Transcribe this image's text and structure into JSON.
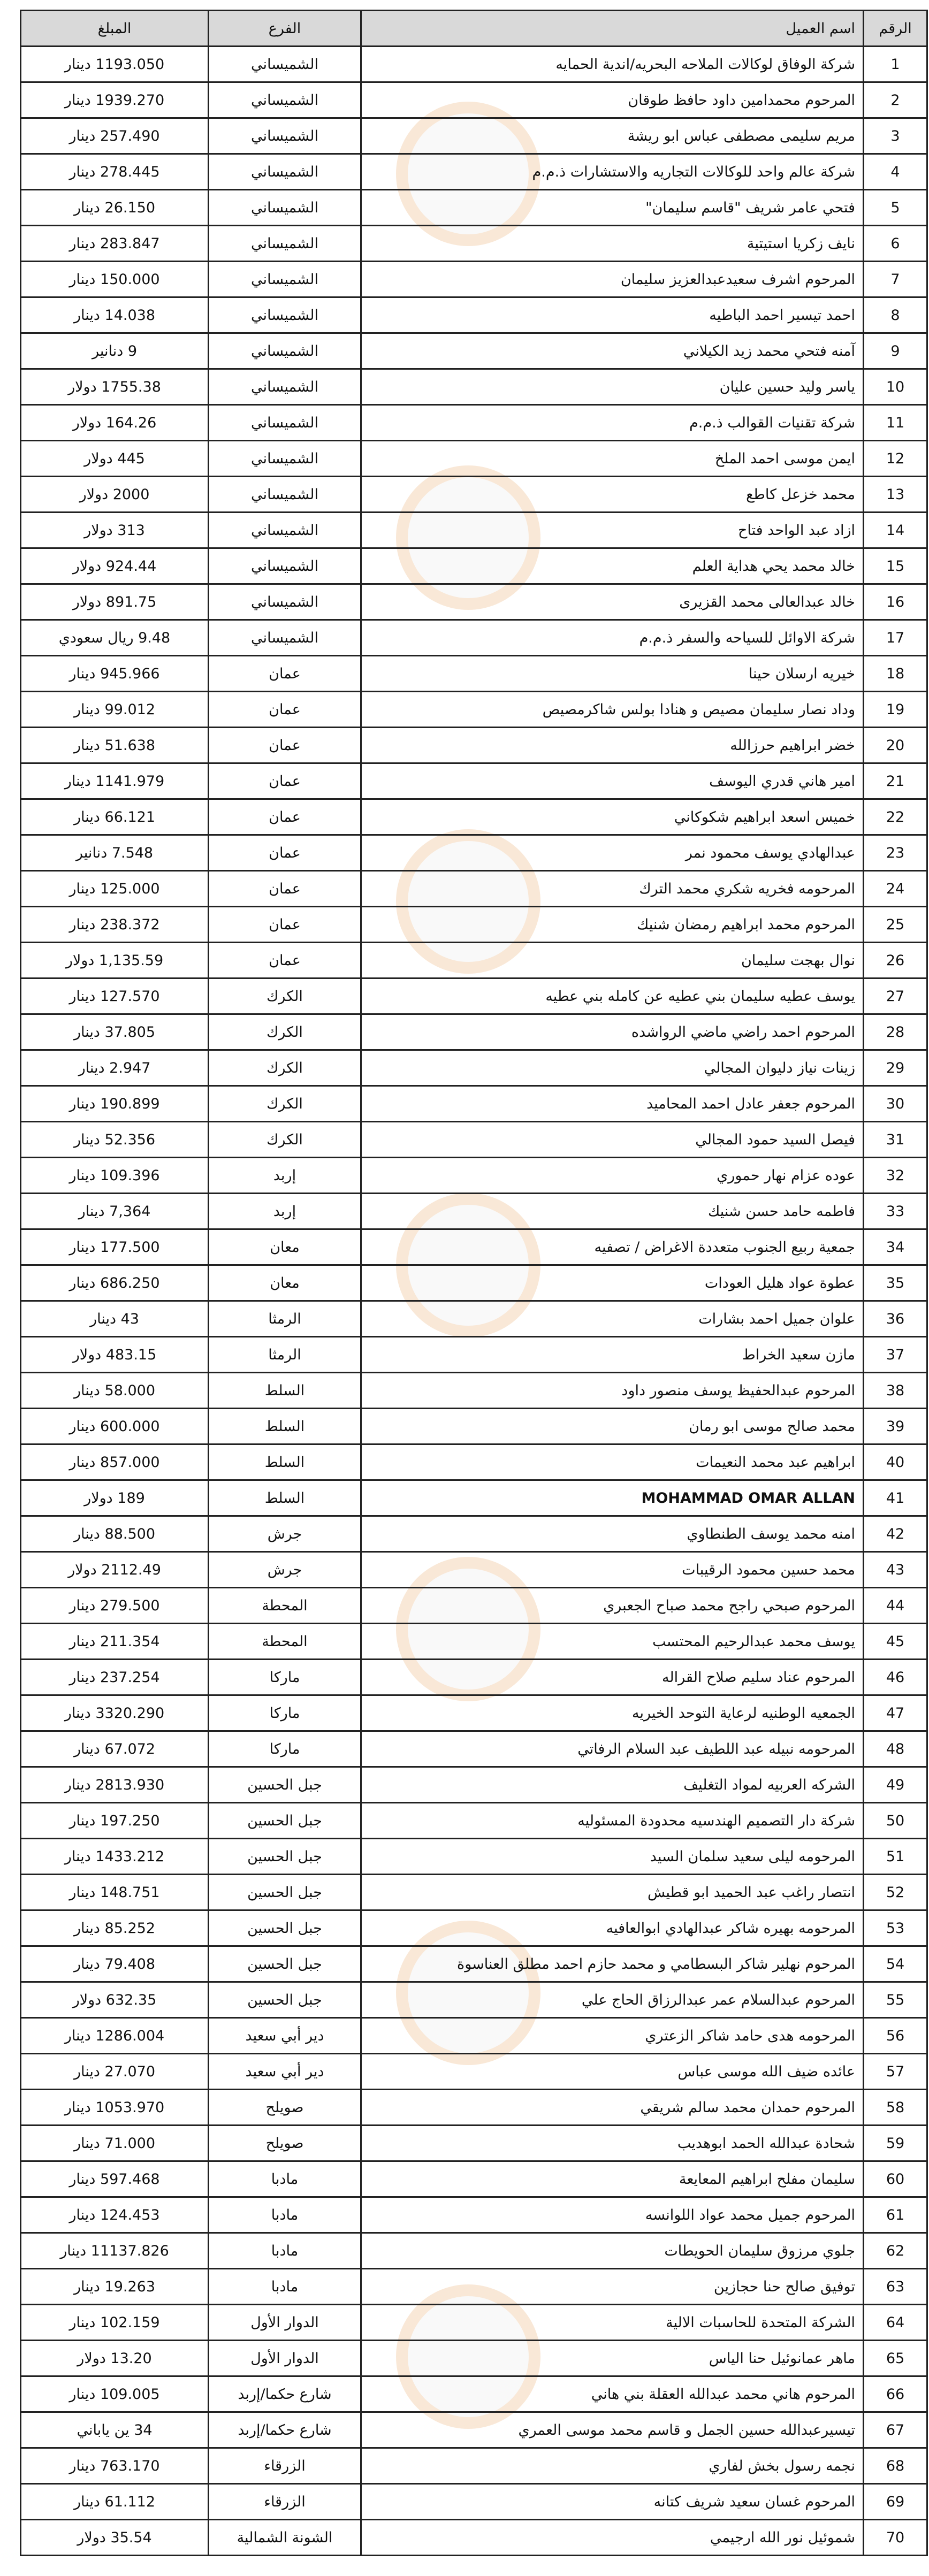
{
  "header": {
    "num": "الرقم",
    "name": "اسم العميل",
    "branch": "الفرع",
    "amount": "المبلغ"
  },
  "watermark_text": "مدار الساعة الإخبارية",
  "watermark_colors": {
    "ring": "#f5aa5a",
    "text": "#dcdcdc"
  },
  "header_bg": "#d9d9d9",
  "rows": [
    {
      "num": "1",
      "name": "شركة الوفاق لوكالات الملاحه البحريه/اندية الحمايه",
      "branch": "الشميساني",
      "amount": "1193.050 دينار"
    },
    {
      "num": "2",
      "name": "المرحوم محمدامين داود حافظ طوقان",
      "branch": "الشميساني",
      "amount": "1939.270 دينار"
    },
    {
      "num": "3",
      "name": "مريم سليمى مصطفى عباس ابو ريشة",
      "branch": "الشميساني",
      "amount": "257.490 دينار"
    },
    {
      "num": "4",
      "name": "شركة عالم واحد للوكالات التجاريه والاستشارات ذ.م.م",
      "branch": "الشميساني",
      "amount": "278.445 دينار"
    },
    {
      "num": "5",
      "name": "فتحي عامر شريف \"قاسم سليمان\"",
      "branch": "الشميساني",
      "amount": "26.150 دينار"
    },
    {
      "num": "6",
      "name": "نايف زكريا استيتية",
      "branch": "الشميساني",
      "amount": "283.847 دينار"
    },
    {
      "num": "7",
      "name": "المرحوم اشرف سعيدعبدالعزيز سليمان",
      "branch": "الشميساني",
      "amount": "150.000 دينار"
    },
    {
      "num": "8",
      "name": "احمد تيسير احمد الباطيه",
      "branch": "الشميساني",
      "amount": "14.038 دينار"
    },
    {
      "num": "9",
      "name": "آمنه فتحي محمد زيد الكيلاني",
      "branch": "الشميساني",
      "amount": "9 دنانير"
    },
    {
      "num": "10",
      "name": "ياسر وليد حسين عليان",
      "branch": "الشميساني",
      "amount": "1755.38 دولار"
    },
    {
      "num": "11",
      "name": "شركة تقنيات القوالب ذ.م.م",
      "branch": "الشميساني",
      "amount": "164.26 دولار"
    },
    {
      "num": "12",
      "name": "ايمن موسى احمد الملخ",
      "branch": "الشميساني",
      "amount": "445 دولار"
    },
    {
      "num": "13",
      "name": "محمد خزعل كاطع",
      "branch": "الشميساني",
      "amount": "2000 دولار"
    },
    {
      "num": "14",
      "name": "ازاد عبد الواحد فتاح",
      "branch": "الشميساني",
      "amount": "313 دولار"
    },
    {
      "num": "15",
      "name": "خالد محمد يحي هداية العلم",
      "branch": "الشميساني",
      "amount": "924.44 دولار"
    },
    {
      "num": "16",
      "name": "خالد عبدالعالى محمد القزيرى",
      "branch": "الشميساني",
      "amount": "891.75 دولار"
    },
    {
      "num": "17",
      "name": "شركة الاوائل للسياحه والسفر ذ.م.م",
      "branch": "الشميساني",
      "amount": "9.48 ريال سعودي"
    },
    {
      "num": "18",
      "name": "خيريه ارسلان حينا",
      "branch": "عمان",
      "amount": "945.966 دينار"
    },
    {
      "num": "19",
      "name": "وداد نصار سليمان مصيص و هنادا بولس شاكرمصيص",
      "branch": "عمان",
      "amount": "99.012 دينار"
    },
    {
      "num": "20",
      "name": "خضر ابراهيم حرزالله",
      "branch": "عمان",
      "amount": "51.638 دينار"
    },
    {
      "num": "21",
      "name": "امير هاني قدري اليوسف",
      "branch": "عمان",
      "amount": "1141.979 دينار"
    },
    {
      "num": "22",
      "name": "خميس اسعد ابراهيم شكوكاني",
      "branch": "عمان",
      "amount": "66.121 دينار"
    },
    {
      "num": "23",
      "name": "عبدالهادي يوسف محمود نمر",
      "branch": "عمان",
      "amount": "7.548 دنانير"
    },
    {
      "num": "24",
      "name": "المرحومه فخريه شكري محمد الترك",
      "branch": "عمان",
      "amount": "125.000 دينار"
    },
    {
      "num": "25",
      "name": "المرحوم محمد ابراهيم رمضان شنيك",
      "branch": "عمان",
      "amount": "238.372 دينار"
    },
    {
      "num": "26",
      "name": "نوال بهجت سليمان",
      "branch": "عمان",
      "amount": "1,135.59 دولار"
    },
    {
      "num": "27",
      "name": "يوسف عطيه سليمان بني عطيه عن كامله بني عطيه",
      "branch": "الكرك",
      "amount": "127.570 دينار"
    },
    {
      "num": "28",
      "name": "المرحوم احمد راضي ماضي الرواشده",
      "branch": "الكرك",
      "amount": "37.805 دينار"
    },
    {
      "num": "29",
      "name": "زينات نياز دليوان المجالي",
      "branch": "الكرك",
      "amount": "2.947 دينار"
    },
    {
      "num": "30",
      "name": "المرحوم جعفر عادل احمد المحاميد",
      "branch": "الكرك",
      "amount": "190.899 دينار"
    },
    {
      "num": "31",
      "name": "فيصل السيد حمود المجالي",
      "branch": "الكرك",
      "amount": "52.356 دينار"
    },
    {
      "num": "32",
      "name": "عوده عزام نهار حموري",
      "branch": "إربد",
      "amount": "109.396 دينار"
    },
    {
      "num": "33",
      "name": "فاطمه حامد حسن شنيك",
      "branch": "إربد",
      "amount": "7,364 دينار"
    },
    {
      "num": "34",
      "name": "جمعية ربيع الجنوب متعددة الاغراض / تصفيه",
      "branch": "معان",
      "amount": "177.500 دينار"
    },
    {
      "num": "35",
      "name": "عطوة عواد هليل العودات",
      "branch": "معان",
      "amount": "686.250 دينار"
    },
    {
      "num": "36",
      "name": "علوان جميل احمد بشارات",
      "branch": "الرمثا",
      "amount": "43 دينار"
    },
    {
      "num": "37",
      "name": "مازن سعيد الخراط",
      "branch": "الرمثا",
      "amount": "483.15 دولار"
    },
    {
      "num": "38",
      "name": "المرحوم عبدالحفيظ يوسف منصور داود",
      "branch": "السلط",
      "amount": "58.000 دينار"
    },
    {
      "num": "39",
      "name": "محمد صالح موسى ابو رمان",
      "branch": "السلط",
      "amount": "600.000 دينار"
    },
    {
      "num": "40",
      "name": "ابراهيم عبد محمد النعيمات",
      "branch": "السلط",
      "amount": "857.000 دينار"
    },
    {
      "num": "41",
      "name": "MOHAMMAD OMAR ALLAN",
      "branch": "السلط",
      "amount": "189 دولار"
    },
    {
      "num": "42",
      "name": "امنه محمد يوسف الطنطاوي",
      "branch": "جرش",
      "amount": "88.500 دينار"
    },
    {
      "num": "43",
      "name": "محمد حسين محمود الرقيبات",
      "branch": "جرش",
      "amount": "2112.49 دولار"
    },
    {
      "num": "44",
      "name": "المرحوم صبحي راجح محمد صباح الجعبري",
      "branch": "المحطة",
      "amount": "279.500 دينار"
    },
    {
      "num": "45",
      "name": "يوسف محمد عبدالرحيم المحتسب",
      "branch": "المحطة",
      "amount": "211.354 دينار"
    },
    {
      "num": "46",
      "name": "المرحوم عناد سليم صلاح القراله",
      "branch": "ماركا",
      "amount": "237.254 دينار"
    },
    {
      "num": "47",
      "name": "الجمعيه الوطنيه لرعاية التوحد الخيريه",
      "branch": "ماركا",
      "amount": "3320.290 دينار"
    },
    {
      "num": "48",
      "name": "المرحومه نبيله عبد اللطيف عبد السلام الرفاتي",
      "branch": "ماركا",
      "amount": "67.072 دينار"
    },
    {
      "num": "49",
      "name": "الشركه العربيه لمواد التغليف",
      "branch": "جبل الحسين",
      "amount": "2813.930 دينار"
    },
    {
      "num": "50",
      "name": "شركة دار التصميم الهندسيه محدودة المسئوليه",
      "branch": "جبل الحسين",
      "amount": "197.250 دينار"
    },
    {
      "num": "51",
      "name": "المرحومه ليلى سعيد سلمان السيد",
      "branch": "جبل الحسين",
      "amount": "1433.212 دينار"
    },
    {
      "num": "52",
      "name": "انتصار راغب عبد الحميد ابو قطيش",
      "branch": "جبل الحسين",
      "amount": "148.751 دينار"
    },
    {
      "num": "53",
      "name": "المرحومه بهيره شاكر عبدالهادي ابوالعافيه",
      "branch": "جبل الحسين",
      "amount": "85.252 دينار"
    },
    {
      "num": "54",
      "name": "المرحوم نهلير شاكر البسطامي و محمد حازم احمد مطلق العناسوة",
      "branch": "جبل الحسين",
      "amount": "79.408 دينار"
    },
    {
      "num": "55",
      "name": "المرحوم عبدالسلام عمر عبدالرزاق الحاج علي",
      "branch": "جبل الحسين",
      "amount": "632.35 دولار"
    },
    {
      "num": "56",
      "name": "المرحومه هدى حامد شاكر الزعتري",
      "branch": "دير أبي سعيد",
      "amount": "1286.004 دينار"
    },
    {
      "num": "57",
      "name": "عائده ضيف الله موسى عباس",
      "branch": "دير أبي سعيد",
      "amount": "27.070 دينار"
    },
    {
      "num": "58",
      "name": "المرحوم حمدان محمد سالم شريقي",
      "branch": "صويلح",
      "amount": "1053.970 دينار"
    },
    {
      "num": "59",
      "name": "شحادة عبدالله الحمد ابوهديب",
      "branch": "صويلح",
      "amount": "71.000 دينار"
    },
    {
      "num": "60",
      "name": "سليمان مفلح ابراهيم المعايعة",
      "branch": "مادبا",
      "amount": "597.468 دينار"
    },
    {
      "num": "61",
      "name": "المرحوم جميل محمد عواد اللوانسه",
      "branch": "مادبا",
      "amount": "124.453 دينار"
    },
    {
      "num": "62",
      "name": "جلوي مرزوق سليمان الحويطات",
      "branch": "مادبا",
      "amount": "11137.826 دينار"
    },
    {
      "num": "63",
      "name": "توفيق صالح حنا حجازين",
      "branch": "مادبا",
      "amount": "19.263 دينار"
    },
    {
      "num": "64",
      "name": "الشركة المتحدة للحاسبات الالية",
      "branch": "الدوار الأول",
      "amount": "102.159 دينار"
    },
    {
      "num": "65",
      "name": "ماهر عمانوئيل حنا الياس",
      "branch": "الدوار الأول",
      "amount": "13.20 دولار"
    },
    {
      "num": "66",
      "name": "المرحوم هاني محمد عبدالله العقلة بني هاني",
      "branch": "شارع حكما/إربد",
      "amount": "109.005 دينار"
    },
    {
      "num": "67",
      "name": "تيسيرعبدالله حسين الجمل و قاسم محمد موسى العمري",
      "branch": "شارع حكما/إربد",
      "amount": "34 ين ياباني"
    },
    {
      "num": "68",
      "name": "نجمه رسول بخش لفاري",
      "branch": "الزرقاء",
      "amount": "763.170 دينار"
    },
    {
      "num": "69",
      "name": "المرحوم غسان سعيد شريف كتانه",
      "branch": "الزرقاء",
      "amount": "61.112 دينار"
    },
    {
      "num": "70",
      "name": "شموئيل نور الله ارجيمي",
      "branch": "الشونة الشمالية",
      "amount": "35.54 دولار"
    }
  ]
}
